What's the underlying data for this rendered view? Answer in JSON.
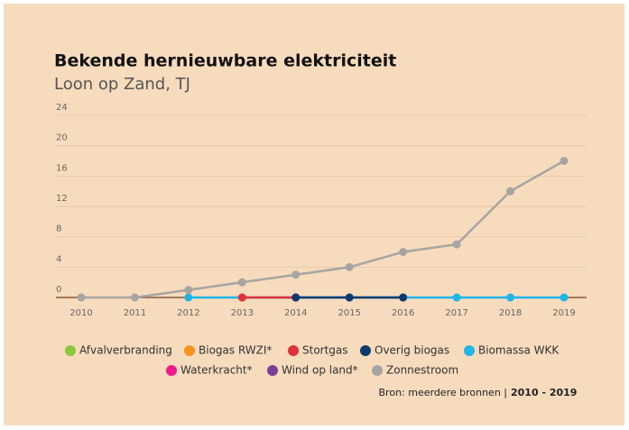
{
  "chart_data": {
    "type": "line",
    "title": "Bekende hernieuwbare elektriciteit",
    "subtitle": "Loon op Zand, TJ",
    "categories": [
      "2010",
      "2011",
      "2012",
      "2013",
      "2014",
      "2015",
      "2016",
      "2017",
      "2018",
      "2019"
    ],
    "ylim": [
      0,
      24
    ],
    "yticks": [
      0,
      4,
      8,
      12,
      16,
      20,
      24
    ],
    "grid": true,
    "series": [
      {
        "name": "Afvalverbranding",
        "color": "#8cc63f",
        "values": [
          null,
          null,
          null,
          0,
          null,
          null,
          null,
          null,
          null,
          null
        ]
      },
      {
        "name": "Biogas RWZI*",
        "color": "#f7941d",
        "values": [
          null,
          null,
          null,
          null,
          null,
          null,
          null,
          null,
          null,
          null
        ]
      },
      {
        "name": "Stortgas",
        "color": "#e0303a",
        "values": [
          null,
          null,
          null,
          0,
          0,
          null,
          null,
          null,
          null,
          null
        ]
      },
      {
        "name": "Overig biogas",
        "color": "#0d3a6e",
        "values": [
          null,
          null,
          null,
          null,
          0,
          0,
          0,
          null,
          null,
          null
        ]
      },
      {
        "name": "Biomassa WKK",
        "color": "#1fb5e8",
        "values": [
          null,
          null,
          0,
          0,
          0,
          0,
          0,
          0,
          0,
          0
        ]
      },
      {
        "name": "Waterkracht*",
        "color": "#ec1c8c",
        "values": [
          null,
          null,
          null,
          null,
          null,
          null,
          null,
          null,
          null,
          null
        ]
      },
      {
        "name": "Wind op land*",
        "color": "#7b3f98",
        "values": [
          null,
          null,
          null,
          null,
          null,
          null,
          null,
          null,
          null,
          null
        ]
      },
      {
        "name": "Zonnestroom",
        "color": "#a7a5a2",
        "values": [
          0,
          0,
          1,
          2,
          3,
          4,
          6,
          7,
          14,
          18
        ]
      }
    ],
    "source": "Bron: meerdere bronnen |",
    "period": "2010 - 2019"
  }
}
